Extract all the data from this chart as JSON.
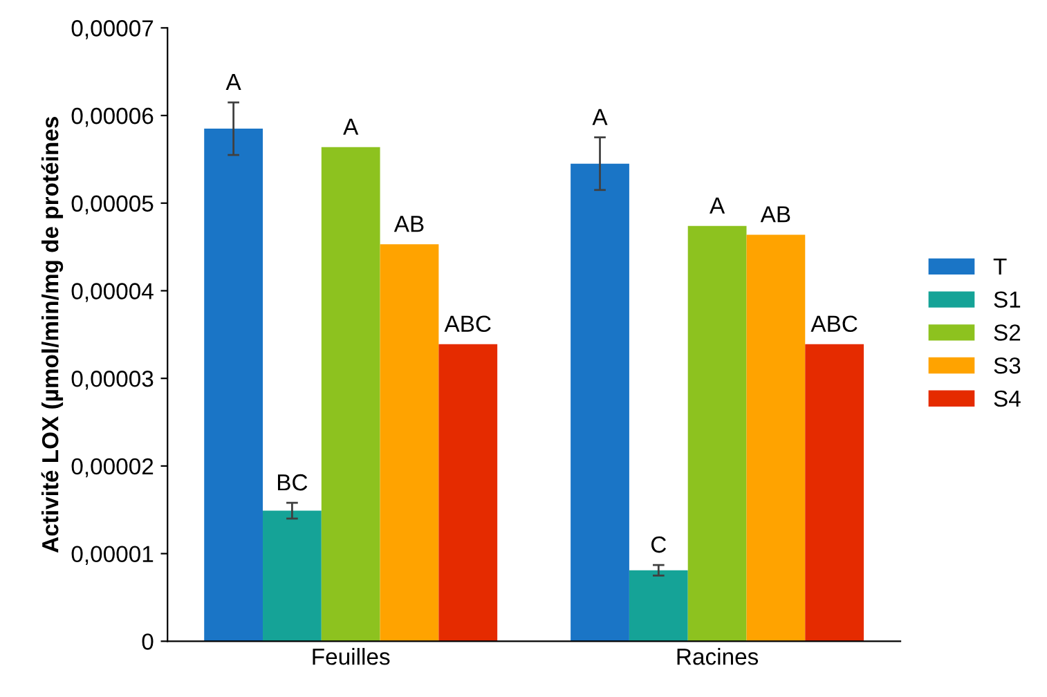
{
  "chart_data": {
    "type": "bar",
    "ylabel": "Activité LOX (µmol/min/mg de protéines",
    "categories": [
      "Feuilles",
      "Racines"
    ],
    "series": [
      {
        "name": "T",
        "color": "#1a75c6",
        "values": [
          5.85e-05,
          5.45e-05
        ],
        "errors": [
          3e-06,
          3e-06
        ],
        "value_labels": [
          "A",
          "A"
        ]
      },
      {
        "name": "S1",
        "color": "#15a397",
        "values": [
          1.49e-05,
          8.1e-06
        ],
        "errors": [
          9e-07,
          6e-07
        ],
        "value_labels": [
          "BC",
          "C"
        ]
      },
      {
        "name": "S2",
        "color": "#8dc21f",
        "values": [
          5.64e-05,
          4.74e-05
        ],
        "value_labels": [
          "A",
          "A"
        ]
      },
      {
        "name": "S3",
        "color": "#ffa300",
        "values": [
          4.53e-05,
          4.64e-05
        ],
        "value_labels": [
          "AB",
          "AB"
        ]
      },
      {
        "name": "S4",
        "color": "#e52b00",
        "values": [
          3.39e-05,
          3.39e-05
        ],
        "value_labels": [
          "ABC",
          "ABC"
        ]
      }
    ],
    "ylim": [
      0,
      7e-05
    ],
    "yticks": [
      {
        "value": 0,
        "label": "0"
      },
      {
        "value": 1e-05,
        "label": "0,00001"
      },
      {
        "value": 2e-05,
        "label": "0,00002"
      },
      {
        "value": 3e-05,
        "label": "0,00003"
      },
      {
        "value": 4e-05,
        "label": "0,00004"
      },
      {
        "value": 5e-05,
        "label": "0,00005"
      },
      {
        "value": 6e-05,
        "label": "0,00006"
      },
      {
        "value": 7e-05,
        "label": "0,00007"
      }
    ],
    "grid": false,
    "legend": "right"
  }
}
